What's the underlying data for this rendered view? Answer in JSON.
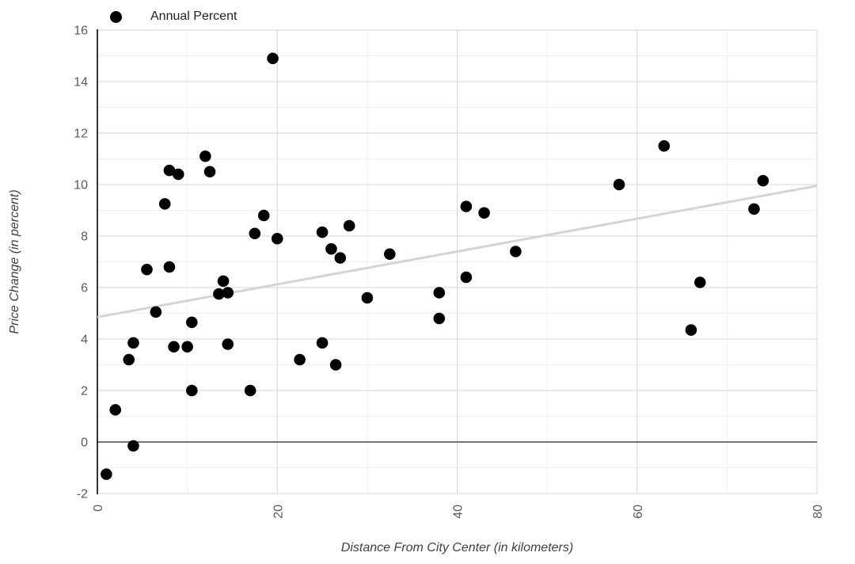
{
  "chart_data": {
    "type": "scatter",
    "title": "",
    "xlabel": "Distance From City Center (in kilometers)",
    "ylabel": "Price Change (in percent)",
    "xlim": [
      0,
      80
    ],
    "ylim": [
      -2,
      16
    ],
    "x_ticks": [
      0,
      20,
      40,
      60,
      80
    ],
    "x_minor_grid_step": 10,
    "y_ticks": [
      -2,
      0,
      2,
      4,
      6,
      8,
      10,
      12,
      14,
      16
    ],
    "y_minor_grid_step": 1,
    "grid": "on",
    "legend_position": "top-left",
    "series": [
      {
        "name": "Annual Percent",
        "color": "#000000",
        "points": [
          [
            1,
            -1.25
          ],
          [
            2,
            1.25
          ],
          [
            3.5,
            3.2
          ],
          [
            4,
            -0.15
          ],
          [
            4,
            3.85
          ],
          [
            5.5,
            6.7
          ],
          [
            6.5,
            5.05
          ],
          [
            7.5,
            9.25
          ],
          [
            8,
            6.8
          ],
          [
            8,
            10.55
          ],
          [
            8.5,
            3.7
          ],
          [
            9,
            10.4
          ],
          [
            10,
            3.7
          ],
          [
            10.5,
            2.0
          ],
          [
            10.5,
            4.65
          ],
          [
            12,
            11.1
          ],
          [
            12.5,
            10.5
          ],
          [
            13.5,
            5.75
          ],
          [
            14,
            6.25
          ],
          [
            14.5,
            3.8
          ],
          [
            14.5,
            5.8
          ],
          [
            17,
            2.0
          ],
          [
            17.5,
            8.1
          ],
          [
            18.5,
            8.8
          ],
          [
            19.5,
            14.9
          ],
          [
            20,
            7.9
          ],
          [
            22.5,
            3.2
          ],
          [
            25,
            3.85
          ],
          [
            25,
            8.15
          ],
          [
            26,
            7.5
          ],
          [
            26.5,
            3.0
          ],
          [
            27,
            7.15
          ],
          [
            28,
            8.4
          ],
          [
            30,
            5.6
          ],
          [
            32.5,
            7.3
          ],
          [
            38,
            4.8
          ],
          [
            38,
            5.8
          ],
          [
            41,
            6.4
          ],
          [
            41,
            9.15
          ],
          [
            43,
            8.9
          ],
          [
            46.5,
            7.4
          ],
          [
            58,
            10.0
          ],
          [
            63,
            11.5
          ],
          [
            66,
            4.35
          ],
          [
            67,
            6.2
          ],
          [
            73,
            9.05
          ],
          [
            74,
            10.15
          ]
        ]
      }
    ],
    "trendline": {
      "x1": 0,
      "y1": 4.85,
      "x2": 80,
      "y2": 9.95,
      "color": "#d4d4d4"
    },
    "colors": {
      "point": "#000000",
      "grid_major": "#d6d6d6",
      "grid_minor": "#efefef",
      "zero_line": "#757575",
      "axis_line": "#333333",
      "tick_label": "#5a5a5a",
      "axis_title": "#3f3f3f",
      "legend_text": "#212121",
      "background": "#ffffff"
    }
  }
}
